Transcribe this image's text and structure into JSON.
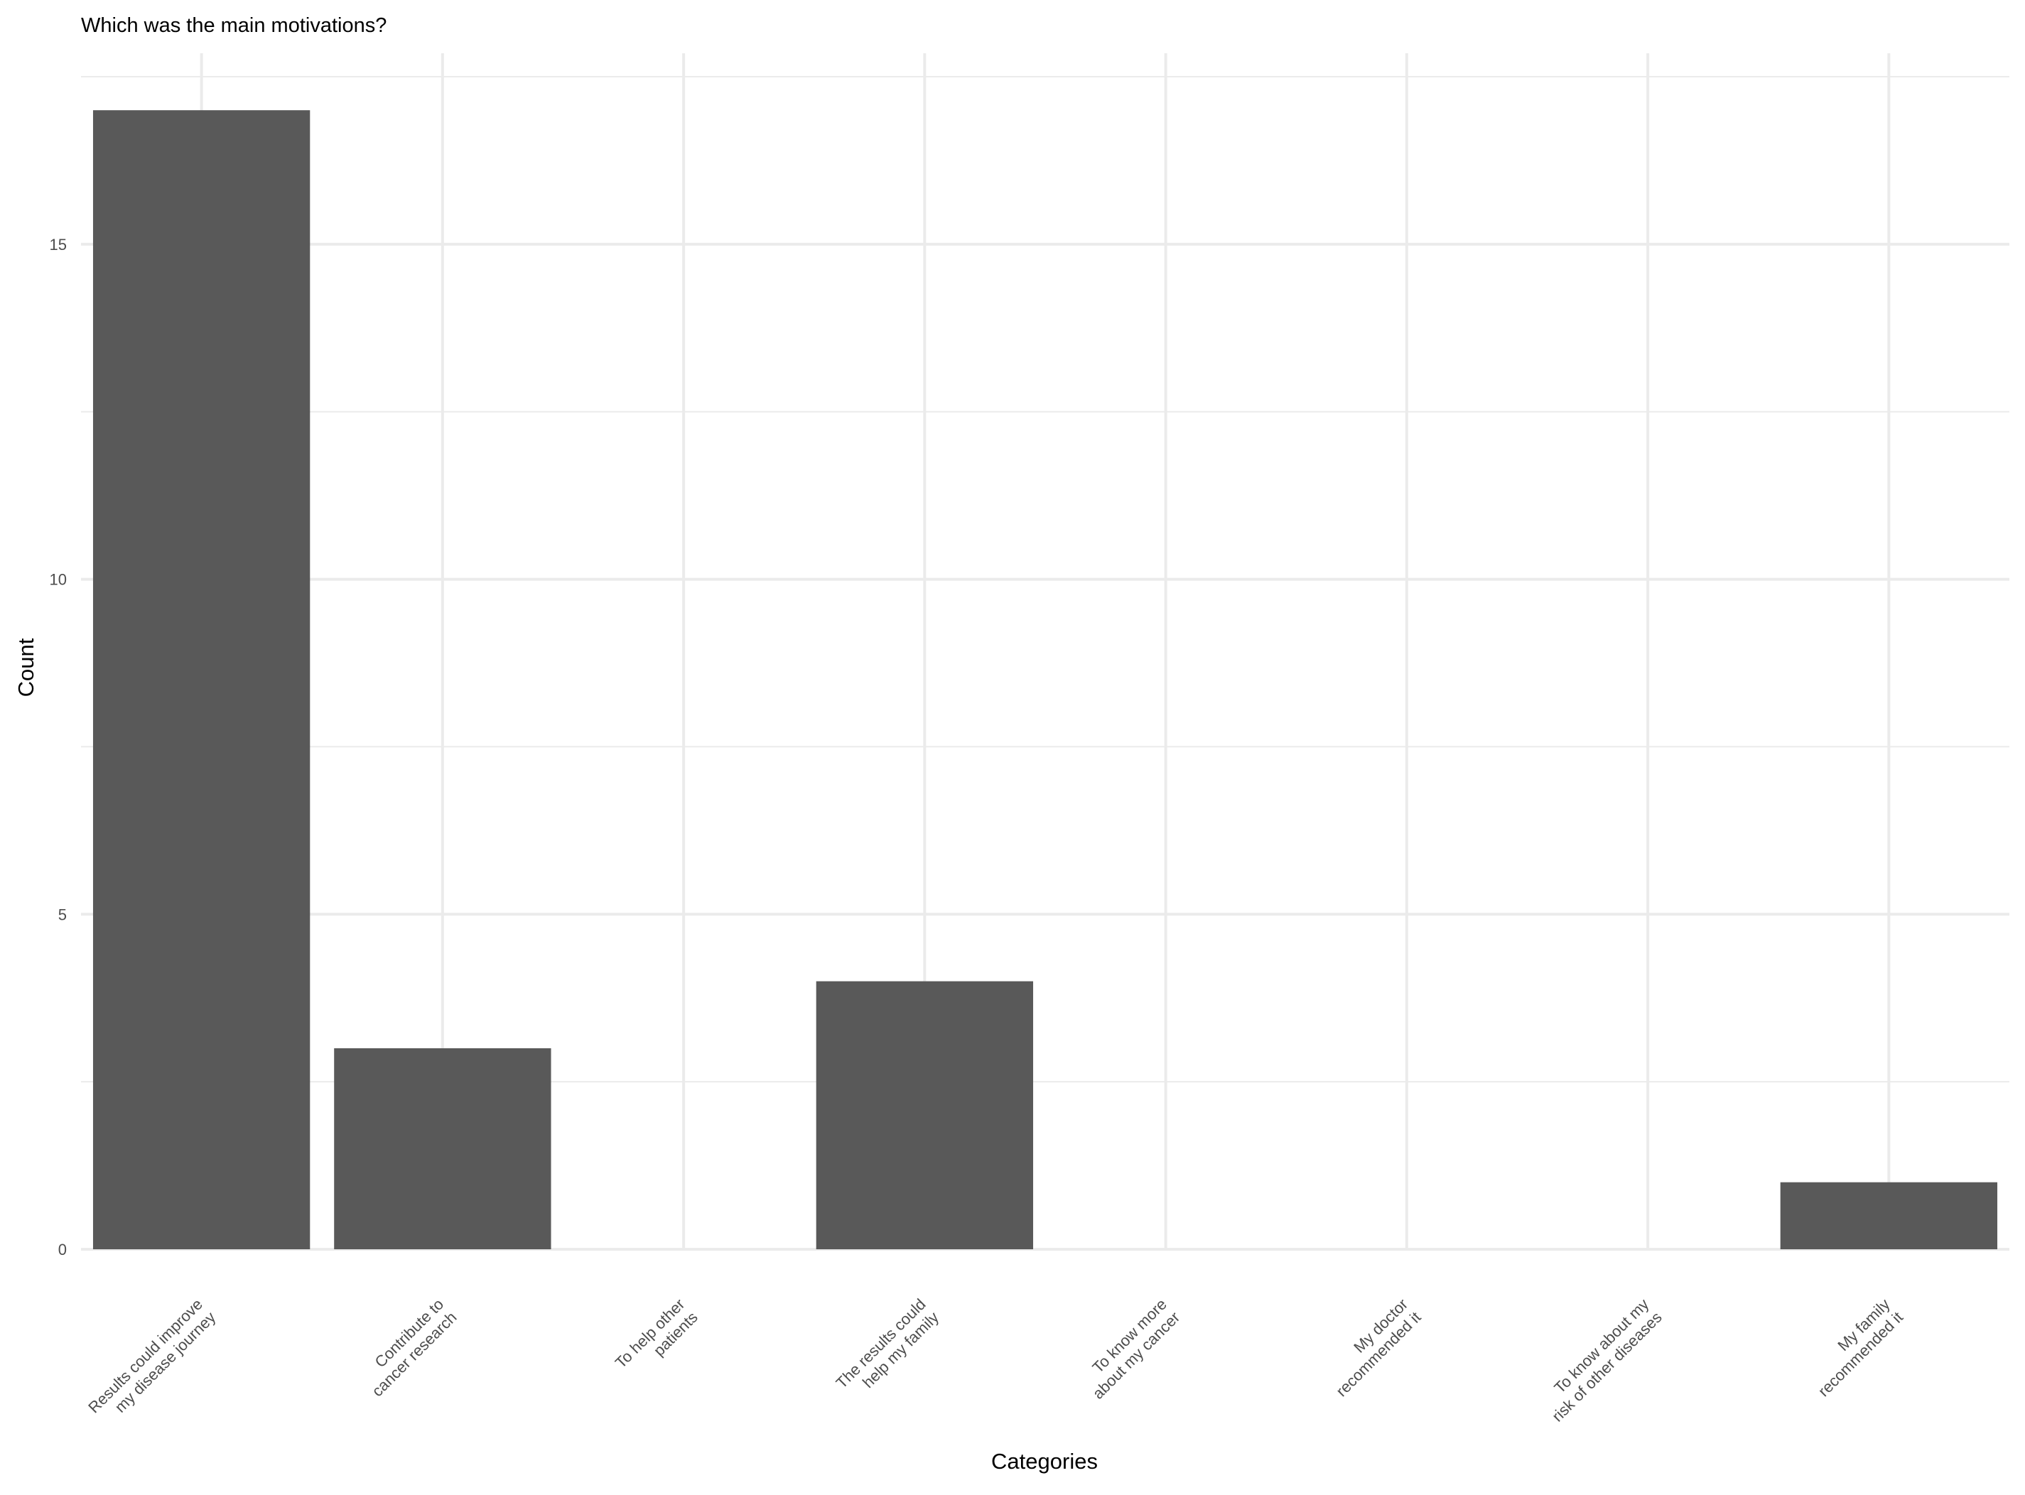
{
  "chart_data": {
    "type": "bar",
    "title": "Which was the main motivations?",
    "xlabel": "Categories",
    "ylabel": "Count",
    "categories": [
      [
        "Results could improve",
        "my disease journey"
      ],
      [
        "Contribute to",
        "cancer research"
      ],
      [
        "To help other",
        "patients"
      ],
      [
        "The results could",
        "help my family"
      ],
      [
        "To know more",
        "about my cancer"
      ],
      [
        "My doctor",
        "recommended it"
      ],
      [
        "To know about my",
        "risk of other diseases"
      ],
      [
        "My family",
        "recommended it"
      ]
    ],
    "values": [
      17,
      3,
      0,
      4,
      0,
      0,
      0,
      1
    ],
    "ylim": [
      0,
      17.85
    ],
    "yticks": [
      0,
      5,
      10,
      15
    ],
    "grid": true,
    "bar_color": "#595959",
    "grid_color": "#ebebeb",
    "background": "#ffffff"
  }
}
